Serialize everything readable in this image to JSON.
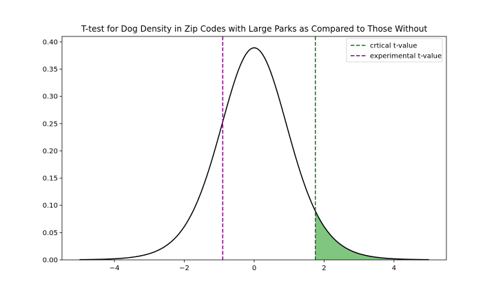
{
  "chart_data": {
    "type": "line",
    "title": "T-test for Dog Density in Zip Codes with Large Parks as Compared to Those Without",
    "xlabel": "",
    "ylabel": "",
    "xlim": [
      -5.5,
      5.5
    ],
    "ylim": [
      0,
      0.41
    ],
    "xticks": [
      -4,
      -2,
      0,
      2,
      4
    ],
    "xtick_labels": [
      "−4",
      "−2",
      "0",
      "2",
      "4"
    ],
    "yticks": [
      0.0,
      0.05,
      0.1,
      0.15,
      0.2,
      0.25,
      0.3,
      0.35,
      0.4
    ],
    "ytick_labels": [
      "0.00",
      "0.05",
      "0.10",
      "0.15",
      "0.20",
      "0.25",
      "0.30",
      "0.35",
      "0.40"
    ],
    "grid": false,
    "legend_position": "top-right",
    "curve": {
      "description": "t-distribution probability density",
      "degrees_of_freedom": 10,
      "x_range": [
        -5,
        5
      ],
      "color": "#000000"
    },
    "shaded_region": {
      "x_from": 1.75,
      "x_to": 5,
      "color": "#2ca02c",
      "opacity": 0.6
    },
    "series": [
      {
        "name": "crtical t-value",
        "x": 1.75,
        "style": "dashed",
        "color": "#008000"
      },
      {
        "name": "experimental t-value",
        "x": -0.9,
        "style": "dashed",
        "color": "#800080"
      }
    ]
  }
}
